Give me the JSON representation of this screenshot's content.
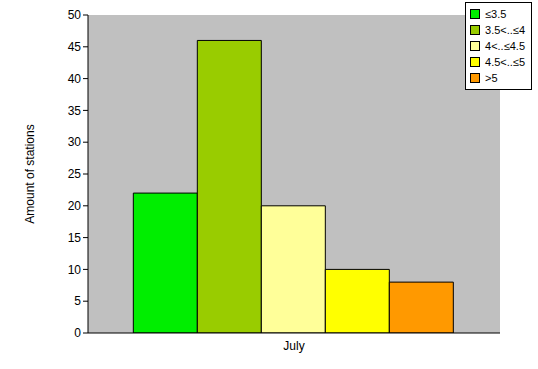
{
  "chart_data": {
    "type": "bar",
    "categories": [
      "July"
    ],
    "series": [
      {
        "name": "≤3.5",
        "color": "#00ee00",
        "values": [
          22
        ]
      },
      {
        "name": "3.5<..≤4",
        "color": "#99cc00",
        "values": [
          46
        ]
      },
      {
        "name": "4<..≤4.5",
        "color": "#ffff99",
        "values": [
          20
        ]
      },
      {
        "name": "4.5<..≤5",
        "color": "#ffff00",
        "values": [
          10
        ]
      },
      {
        "name": ">5",
        "color": "#ff9900",
        "values": [
          8
        ]
      }
    ],
    "y_label": "Amount of stations",
    "ylim": [
      0,
      50
    ],
    "yticks": [
      0,
      5,
      10,
      15,
      20,
      25,
      30,
      35,
      40,
      45,
      50
    ],
    "grid": false,
    "legend": "top-right"
  }
}
